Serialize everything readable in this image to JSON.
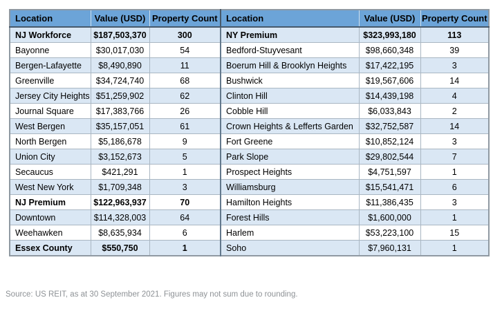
{
  "table": {
    "headers": [
      "Location",
      "Value (USD)",
      "Property Count",
      "Location",
      "Value (USD)",
      "Property Count"
    ],
    "left_rows": [
      {
        "location": "NJ Workforce",
        "value": "$187,503,370",
        "count": "300",
        "bold": true
      },
      {
        "location": "Bayonne",
        "value": "$30,017,030",
        "count": "54",
        "bold": false
      },
      {
        "location": "Bergen-Lafayette",
        "value": "$8,490,890",
        "count": "11",
        "bold": false
      },
      {
        "location": "Greenville",
        "value": "$34,724,740",
        "count": "68",
        "bold": false
      },
      {
        "location": "Jersey City Heights",
        "value": "$51,259,902",
        "count": "62",
        "bold": false
      },
      {
        "location": "Journal Square",
        "value": "$17,383,766",
        "count": "26",
        "bold": false
      },
      {
        "location": "West Bergen",
        "value": "$35,157,051",
        "count": "61",
        "bold": false
      },
      {
        "location": "North Bergen",
        "value": "$5,186,678",
        "count": "9",
        "bold": false
      },
      {
        "location": "Union City",
        "value": "$3,152,673",
        "count": "5",
        "bold": false
      },
      {
        "location": "Secaucus",
        "value": "$421,291",
        "count": "1",
        "bold": false
      },
      {
        "location": "West New York",
        "value": "$1,709,348",
        "count": "3",
        "bold": false
      },
      {
        "location": "NJ Premium",
        "value": "$122,963,937",
        "count": "70",
        "bold": true
      },
      {
        "location": "Downtown",
        "value": "$114,328,003",
        "count": "64",
        "bold": false
      },
      {
        "location": "Weehawken",
        "value": "$8,635,934",
        "count": "6",
        "bold": false
      },
      {
        "location": "Essex County",
        "value": "$550,750",
        "count": "1",
        "bold": true
      }
    ],
    "right_rows": [
      {
        "location": "NY Premium",
        "value": "$323,993,180",
        "count": "113",
        "bold": true
      },
      {
        "location": "Bedford-Stuyvesant",
        "value": "$98,660,348",
        "count": "39",
        "bold": false
      },
      {
        "location": "Boerum Hill & Brooklyn Heights",
        "value": "$17,422,195",
        "count": "3",
        "bold": false
      },
      {
        "location": "Bushwick",
        "value": "$19,567,606",
        "count": "14",
        "bold": false
      },
      {
        "location": "Clinton Hill",
        "value": "$14,439,198",
        "count": "4",
        "bold": false
      },
      {
        "location": "Cobble Hill",
        "value": "$6,033,843",
        "count": "2",
        "bold": false
      },
      {
        "location": "Crown Heights & Lefferts Garden",
        "value": "$32,752,587",
        "count": "14",
        "bold": false
      },
      {
        "location": "Fort Greene",
        "value": "$10,852,124",
        "count": "3",
        "bold": false
      },
      {
        "location": "Park Slope",
        "value": "$29,802,544",
        "count": "7",
        "bold": false
      },
      {
        "location": "Prospect Heights",
        "value": "$4,751,597",
        "count": "1",
        "bold": false
      },
      {
        "location": "Williamsburg",
        "value": "$15,541,471",
        "count": "6",
        "bold": false
      },
      {
        "location": "Hamilton Heights",
        "value": "$11,386,435",
        "count": "3",
        "bold": false
      },
      {
        "location": "Forest Hills",
        "value": "$1,600,000",
        "count": "1",
        "bold": false
      },
      {
        "location": "Harlem",
        "value": "$53,223,100",
        "count": "15",
        "bold": false
      },
      {
        "location": "Soho",
        "value": "$7,960,131",
        "count": "1",
        "bold": false
      }
    ]
  },
  "footer": {
    "source_note": "Source: US REIT, as at 30 September 2021. Figures may not sum due to rounding."
  },
  "colors": {
    "header_bg": "#6ca4d8",
    "banded_row_bg": "#dae7f4",
    "row_bg": "#ffffff",
    "header_bottom_border": "#47596b",
    "cell_border": "#a9b6c2",
    "outer_border": "#8f99a2",
    "text": "#000000",
    "source_text": "#8e9296"
  }
}
